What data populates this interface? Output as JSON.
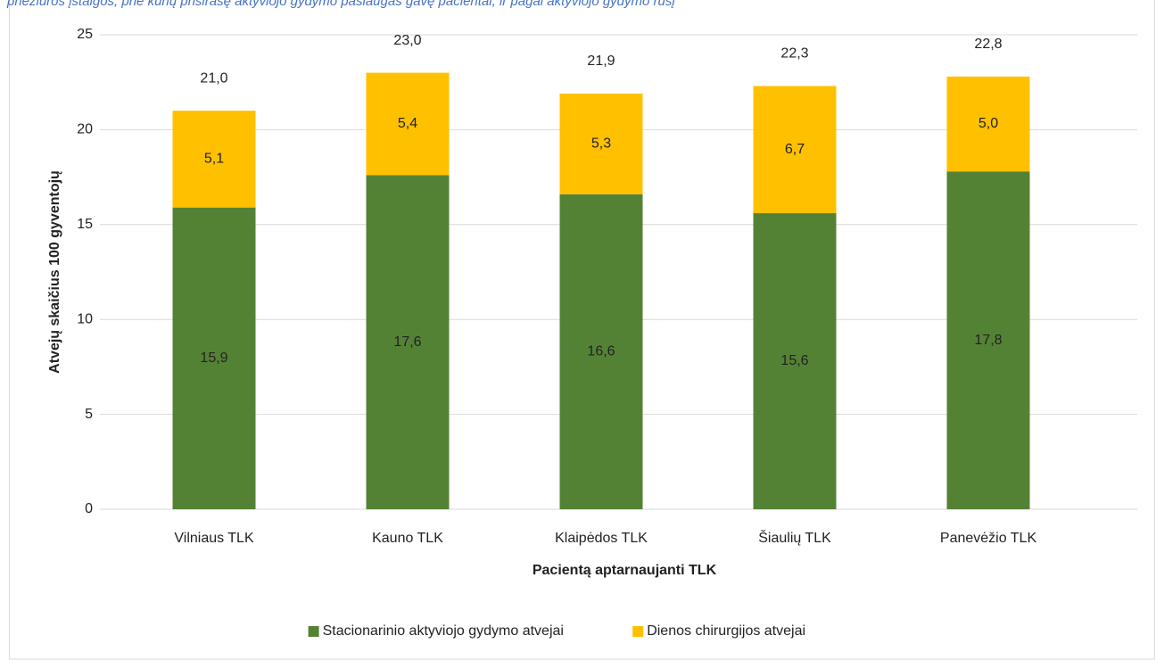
{
  "chart_data": {
    "type": "stacked_bar",
    "title": "priežiūros įstaigos, prie kurių prisirašę aktyviojo gydymo paslaugas gavę pacientai, ir pagal aktyviojo gydymo rūšį",
    "ylabel": "Atvejų skaičius 100 gyventojų",
    "xlabel": "Pacientą aptarnaujanti TLK",
    "categories": [
      "Vilniaus TLK",
      "Kauno TLK",
      "Klaipėdos TLK",
      "Šiaulių TLK",
      "Panevėžio TLK"
    ],
    "series": [
      {
        "name": "Stacionarinio aktyviojo gydymo atvejai",
        "color": "#548235",
        "values": [
          15.9,
          17.6,
          16.6,
          15.6,
          17.8
        ],
        "value_labels": [
          "15,9",
          "17,6",
          "16,6",
          "15,6",
          "17,8"
        ]
      },
      {
        "name": "Dienos chirurgijos atvejai",
        "color": "#ffc000",
        "values": [
          5.1,
          5.4,
          5.3,
          6.7,
          5.0
        ],
        "value_labels": [
          "5,1",
          "5,4",
          "5,3",
          "6,7",
          "5,0"
        ]
      }
    ],
    "totals": [
      21.0,
      23.0,
      21.9,
      22.3,
      22.8
    ],
    "total_labels": [
      "21,0",
      "23,0",
      "21,9",
      "22,3",
      "22,8"
    ],
    "ylim": [
      0,
      25
    ],
    "yticks": [
      0,
      5,
      10,
      15,
      20,
      25
    ],
    "grid": true,
    "legend": "bottom"
  }
}
